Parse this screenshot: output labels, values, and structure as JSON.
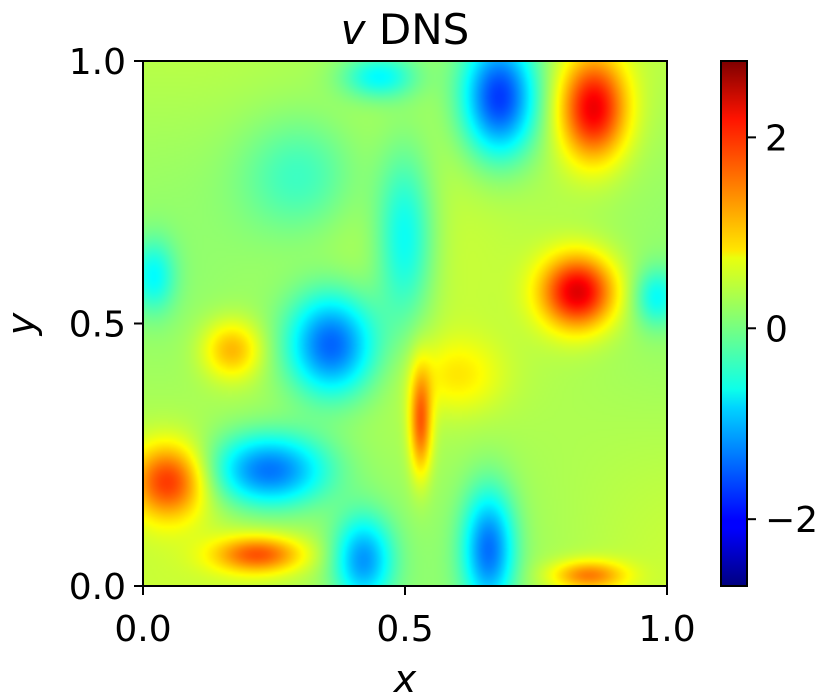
{
  "chart_data": {
    "type": "heatmap",
    "title": {
      "var": "v",
      "rest": " DNS"
    },
    "xlabel": "x",
    "ylabel": "y",
    "xlim": [
      0,
      1
    ],
    "ylim": [
      0,
      1
    ],
    "x_ticks": [
      {
        "value": 0.0,
        "label": "0.0"
      },
      {
        "value": 0.5,
        "label": "0.5"
      },
      {
        "value": 1.0,
        "label": "1.0"
      }
    ],
    "y_ticks": [
      {
        "value": 0.0,
        "label": "0.0"
      },
      {
        "value": 0.5,
        "label": "0.5"
      },
      {
        "value": 1.0,
        "label": "1.0"
      }
    ],
    "colorbar": {
      "colormap": "jet",
      "vmin": -2.7,
      "vmax": 2.8,
      "ticks": [
        {
          "value": 2,
          "label": "2"
        },
        {
          "value": 0,
          "label": "0"
        },
        {
          "value": -2,
          "label": "−2"
        }
      ]
    },
    "field_features": [
      {
        "x": 0.68,
        "y": 0.93,
        "value": -2.0,
        "sx": 0.05,
        "sy": 0.08
      },
      {
        "x": 0.86,
        "y": 0.91,
        "value": 1.9,
        "sx": 0.045,
        "sy": 0.07
      },
      {
        "x": 0.83,
        "y": 0.56,
        "value": 2.0,
        "sx": 0.05,
        "sy": 0.05
      },
      {
        "x": 0.36,
        "y": 0.46,
        "value": -1.8,
        "sx": 0.06,
        "sy": 0.07
      },
      {
        "x": 0.24,
        "y": 0.22,
        "value": -1.7,
        "sx": 0.08,
        "sy": 0.05
      },
      {
        "x": 0.42,
        "y": 0.05,
        "value": -1.4,
        "sx": 0.04,
        "sy": 0.06
      },
      {
        "x": 0.66,
        "y": 0.07,
        "value": -1.6,
        "sx": 0.035,
        "sy": 0.08
      },
      {
        "x": 0.5,
        "y": 0.66,
        "value": -1.0,
        "sx": 0.04,
        "sy": 0.12
      },
      {
        "x": 0.05,
        "y": 0.2,
        "value": 1.5,
        "sx": 0.05,
        "sy": 0.05
      },
      {
        "x": 0.53,
        "y": 0.31,
        "value": 1.3,
        "sx": 0.015,
        "sy": 0.07
      },
      {
        "x": 0.22,
        "y": 0.06,
        "value": 1.3,
        "sx": 0.06,
        "sy": 0.025
      },
      {
        "x": 0.17,
        "y": 0.45,
        "value": 0.9,
        "sx": 0.04,
        "sy": 0.04
      },
      {
        "x": 0.85,
        "y": 0.02,
        "value": 1.1,
        "sx": 0.05,
        "sy": 0.02
      },
      {
        "x": 0.02,
        "y": 0.59,
        "value": -0.8,
        "sx": 0.03,
        "sy": 0.05
      },
      {
        "x": 0.98,
        "y": 0.55,
        "value": -0.8,
        "sx": 0.03,
        "sy": 0.04
      },
      {
        "x": 0.45,
        "y": 0.97,
        "value": -0.9,
        "sx": 0.05,
        "sy": 0.03
      },
      {
        "x": 0.3,
        "y": 0.78,
        "value": -0.6,
        "sx": 0.08,
        "sy": 0.08
      },
      {
        "x": 0.6,
        "y": 0.4,
        "value": 0.5,
        "sx": 0.06,
        "sy": 0.05
      }
    ]
  }
}
